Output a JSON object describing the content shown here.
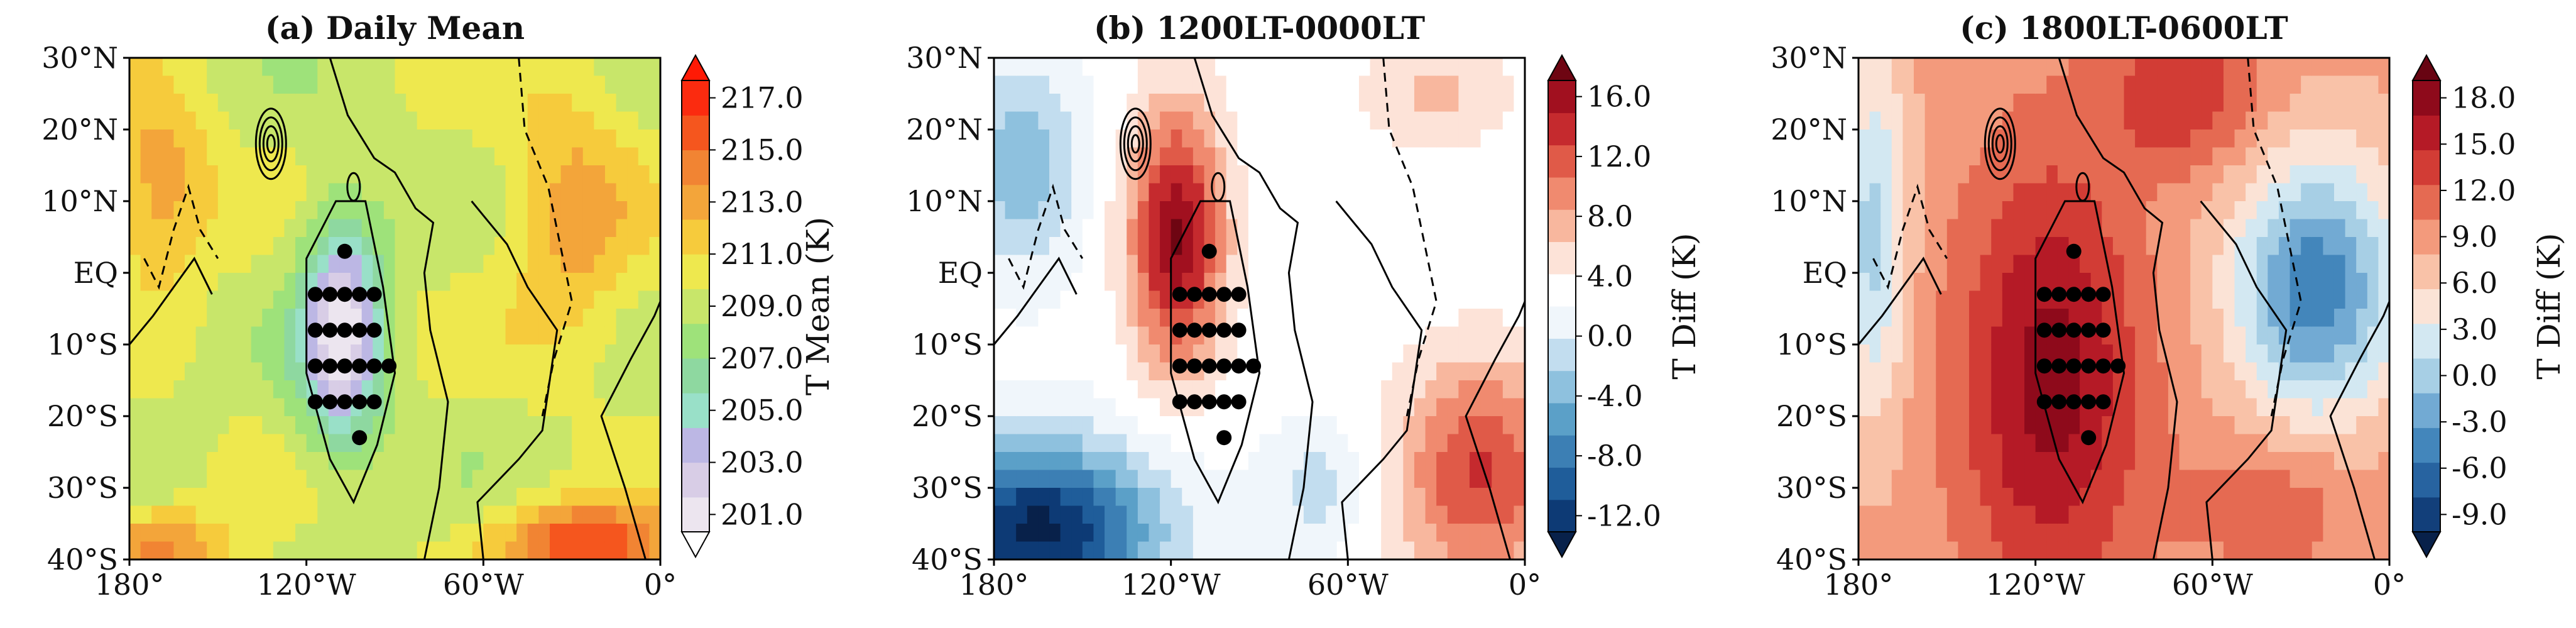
{
  "chart_data": [
    {
      "type": "heatmap",
      "title": "(a) Daily Mean",
      "xlim": [
        -180,
        0
      ],
      "ylim": [
        -40,
        30
      ],
      "xticks": [
        "180°",
        "120°W",
        "60°W",
        "0°"
      ],
      "yticks": [
        "30°N",
        "20°N",
        "10°N",
        "EQ",
        "10°S",
        "20°S",
        "30°S",
        "40°S"
      ],
      "colorbar": {
        "label": "T Mean (K)",
        "ticks": [
          "217.0",
          "215.0",
          "213.0",
          "211.0",
          "209.0",
          "207.0",
          "205.0",
          "203.0",
          "201.0"
        ],
        "range": [
          201,
          217
        ],
        "extend": "both",
        "colors": [
          "#ffffff",
          "#ece5ef",
          "#d8cde6",
          "#bcb7e4",
          "#99e0c8",
          "#8ed8a0",
          "#9ee27a",
          "#c8e66a",
          "#eee84e",
          "#f6cb3c",
          "#f3a53a",
          "#f18433",
          "#f5561e",
          "#fb2b0f",
          "#ff1a05"
        ]
      }
    },
    {
      "type": "heatmap",
      "title": "(b) 1200LT-0000LT",
      "xlim": [
        -180,
        0
      ],
      "ylim": [
        -40,
        30
      ],
      "xticks": [
        "180°",
        "120°W",
        "60°W",
        "0°"
      ],
      "yticks": [
        "30°N",
        "20°N",
        "10°N",
        "EQ",
        "10°S",
        "20°S",
        "30°S",
        "40°S"
      ],
      "colorbar": {
        "label": "T Diff (K)",
        "ticks": [
          "16.0",
          "12.0",
          "8.0",
          "4.0",
          "0.0",
          "-4.0",
          "-8.0",
          "-12.0"
        ],
        "range": [
          -16,
          16
        ],
        "extend": "both",
        "colors": [
          "#08214a",
          "#0d3a75",
          "#1f5d9a",
          "#3c7fb4",
          "#5ba0c8",
          "#8ec1de",
          "#c2ddef",
          "#f0f6fb",
          "#ffffff",
          "#fde3d8",
          "#f8b79e",
          "#f08a6f",
          "#e05a48",
          "#c52a2e",
          "#a1101f",
          "#6e0512"
        ]
      }
    },
    {
      "type": "heatmap",
      "title": "(c) 1800LT-0600LT",
      "xlim": [
        -180,
        0
      ],
      "ylim": [
        -40,
        30
      ],
      "xticks": [
        "180°",
        "120°W",
        "60°W",
        "0°"
      ],
      "yticks": [
        "30°N",
        "20°N",
        "10°N",
        "EQ",
        "10°S",
        "20°S",
        "30°S",
        "40°S"
      ],
      "colorbar": {
        "label": "T Diff (K)",
        "ticks": [
          "18.0",
          "15.0",
          "12.0",
          "9.0",
          "6.0",
          "3.0",
          "0.0",
          "-3.0",
          "-6.0",
          "-9.0"
        ],
        "range": [
          -9,
          18
        ],
        "extend": "both",
        "colors": [
          "#08214a",
          "#123f7a",
          "#2763a0",
          "#4386bb",
          "#72aad3",
          "#a7cfe5",
          "#d3e8f2",
          "#fbe3d6",
          "#f9c2a8",
          "#f39a7c",
          "#e56a52",
          "#d23c35",
          "#b51a26",
          "#8e0a1b",
          "#680412"
        ]
      }
    }
  ]
}
